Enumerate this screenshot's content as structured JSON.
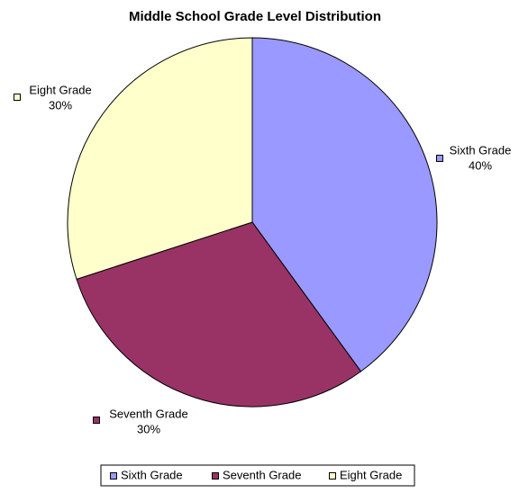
{
  "chart_data": {
    "type": "pie",
    "title": "Middle School Grade Level Distribution",
    "categories": [
      "Sixth Grade",
      "Seventh Grade",
      "Eight Grade"
    ],
    "values": [
      40,
      30,
      30
    ],
    "value_labels": [
      "40%",
      "30%",
      "30%"
    ],
    "colors": [
      "#9999ff",
      "#993366",
      "#ffffcc"
    ],
    "legend": "bottom"
  }
}
